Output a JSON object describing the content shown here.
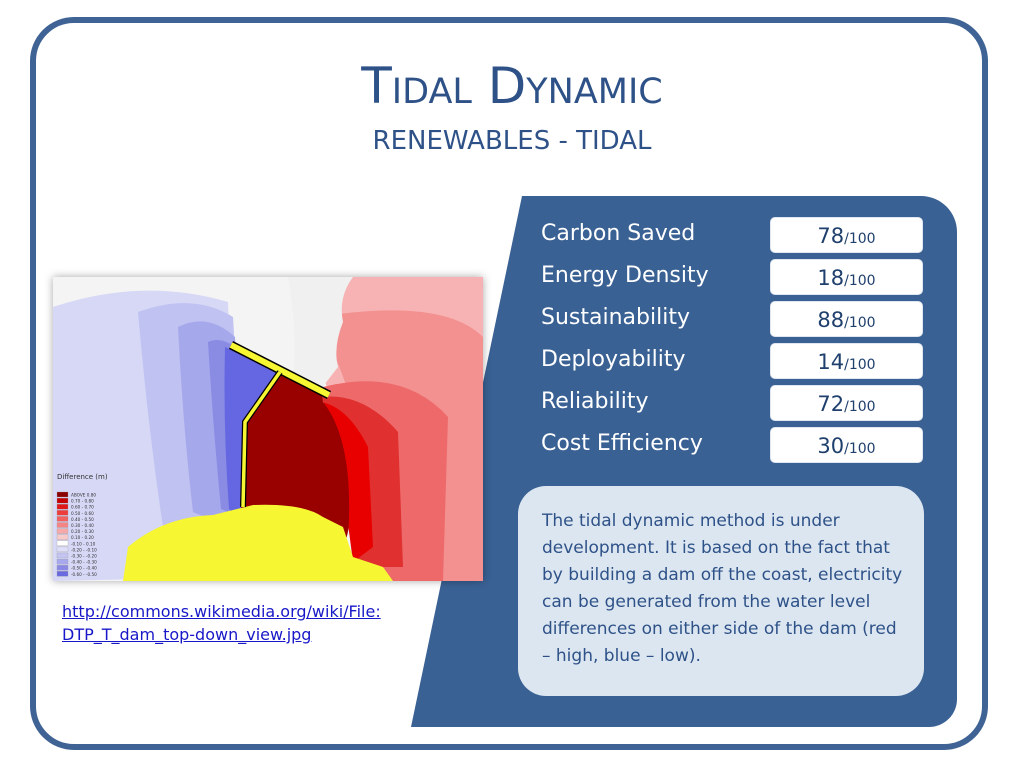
{
  "slide": {
    "title": "Tidal Dynamic",
    "subtitle": "RENEWABLES - TIDAL"
  },
  "metrics": [
    {
      "label": "Carbon Saved",
      "score": "78",
      "max": "/100"
    },
    {
      "label": "Energy Density",
      "score": "18",
      "max": "/100"
    },
    {
      "label": "Sustainability",
      "score": "88",
      "max": "/100"
    },
    {
      "label": "Deployability",
      "score": "14",
      "max": "/100"
    },
    {
      "label": "Reliability",
      "score": "72",
      "max": "/100"
    },
    {
      "label": "Cost Efficiency",
      "score": "30",
      "max": "/100"
    }
  ],
  "description": "The tidal dynamic method is under development. It is based on the fact that by building a dam off the coast, electricity can be generated from the water level differences on either side of the dam (red – high, blue – low).",
  "image": {
    "legend_title": "Difference (m)",
    "legend_items": [
      "ABOVE 0.80",
      "0.70 - 0.80",
      "0.60 - 0.70",
      "0.50 - 0.60",
      "0.40 - 0.50",
      "0.30 - 0.40",
      "0.20 - 0.30",
      "0.10 - 0.20",
      "-0.10 - 0.10",
      "-0.20 - -0.10",
      "-0.30 - -0.20",
      "-0.40 - -0.30",
      "-0.50 - -0.40",
      "-0.60 - -0.50"
    ],
    "legend_colors": [
      "#8b0000",
      "#c40000",
      "#e01818",
      "#ee3c3c",
      "#f26060",
      "#f58585",
      "#f7a8a8",
      "#f9caca",
      "#ffffff",
      "#dedef8",
      "#c4c4f2",
      "#a8a8ee",
      "#8a8ae6",
      "#6a6ae0"
    ]
  },
  "source_link": {
    "line1": "http://commons.wikimedia.org/wiki/File:",
    "line2": "DTP_T_dam_top-down_view.jpg"
  },
  "colors": {
    "frame": "#3f6394",
    "panel": "#3a6194",
    "title": "#2e5288",
    "description_bg": "#dce6f1",
    "link": "#1818c8"
  }
}
